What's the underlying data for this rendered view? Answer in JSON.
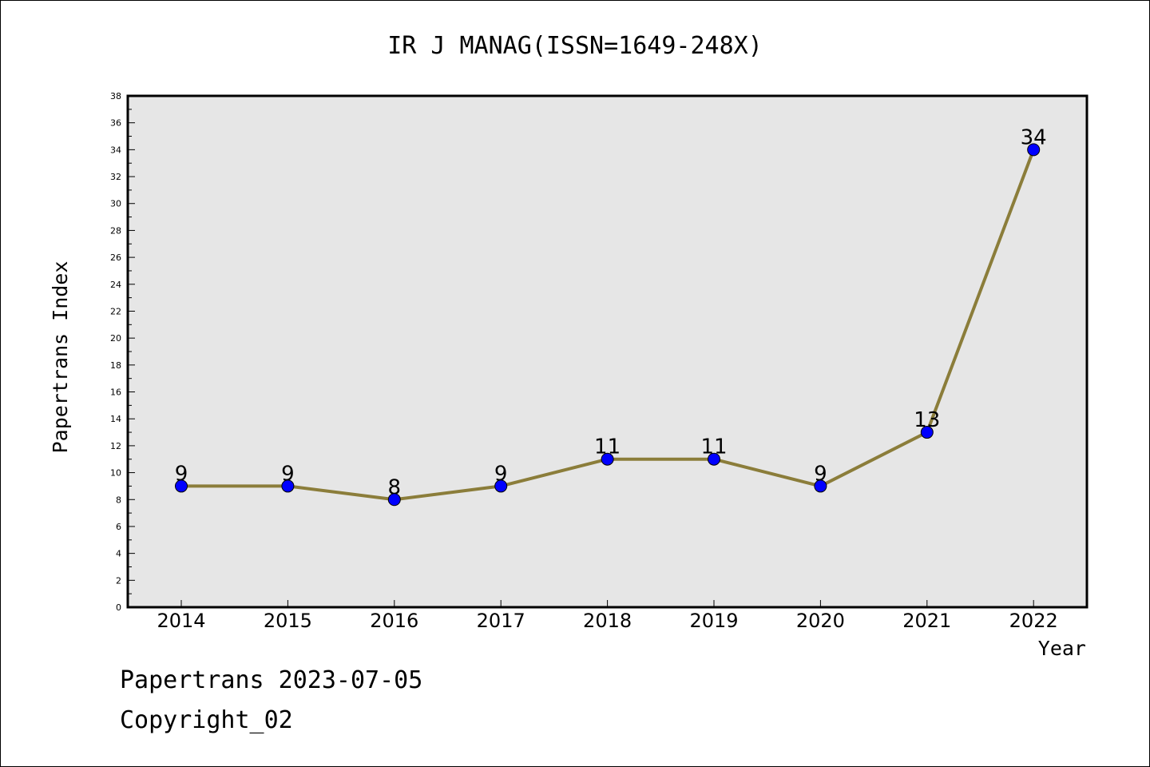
{
  "chart_data": {
    "type": "line",
    "title": "IR J MANAG(ISSN=1649-248X)",
    "xlabel": "Year",
    "ylabel": "Papertrans Index",
    "categories": [
      "2014",
      "2015",
      "2016",
      "2017",
      "2018",
      "2019",
      "2020",
      "2021",
      "2022"
    ],
    "series": [
      {
        "values": [
          9,
          9,
          8,
          9,
          11,
          11,
          9,
          13,
          34
        ]
      }
    ],
    "ylim": [
      0,
      38
    ],
    "y_ticks": [
      0,
      2,
      4,
      6,
      8,
      10,
      12,
      14,
      16,
      18,
      20,
      22,
      24,
      26,
      28,
      30,
      32,
      34,
      36,
      38
    ],
    "grid": false,
    "data_labels": true,
    "colors": {
      "plot_background": "#e6e6e6",
      "line": "#8b7d3a",
      "marker": "#0000ff"
    }
  },
  "footer": {
    "line1": "Papertrans 2023-07-05",
    "line2": "Copyright_02"
  }
}
